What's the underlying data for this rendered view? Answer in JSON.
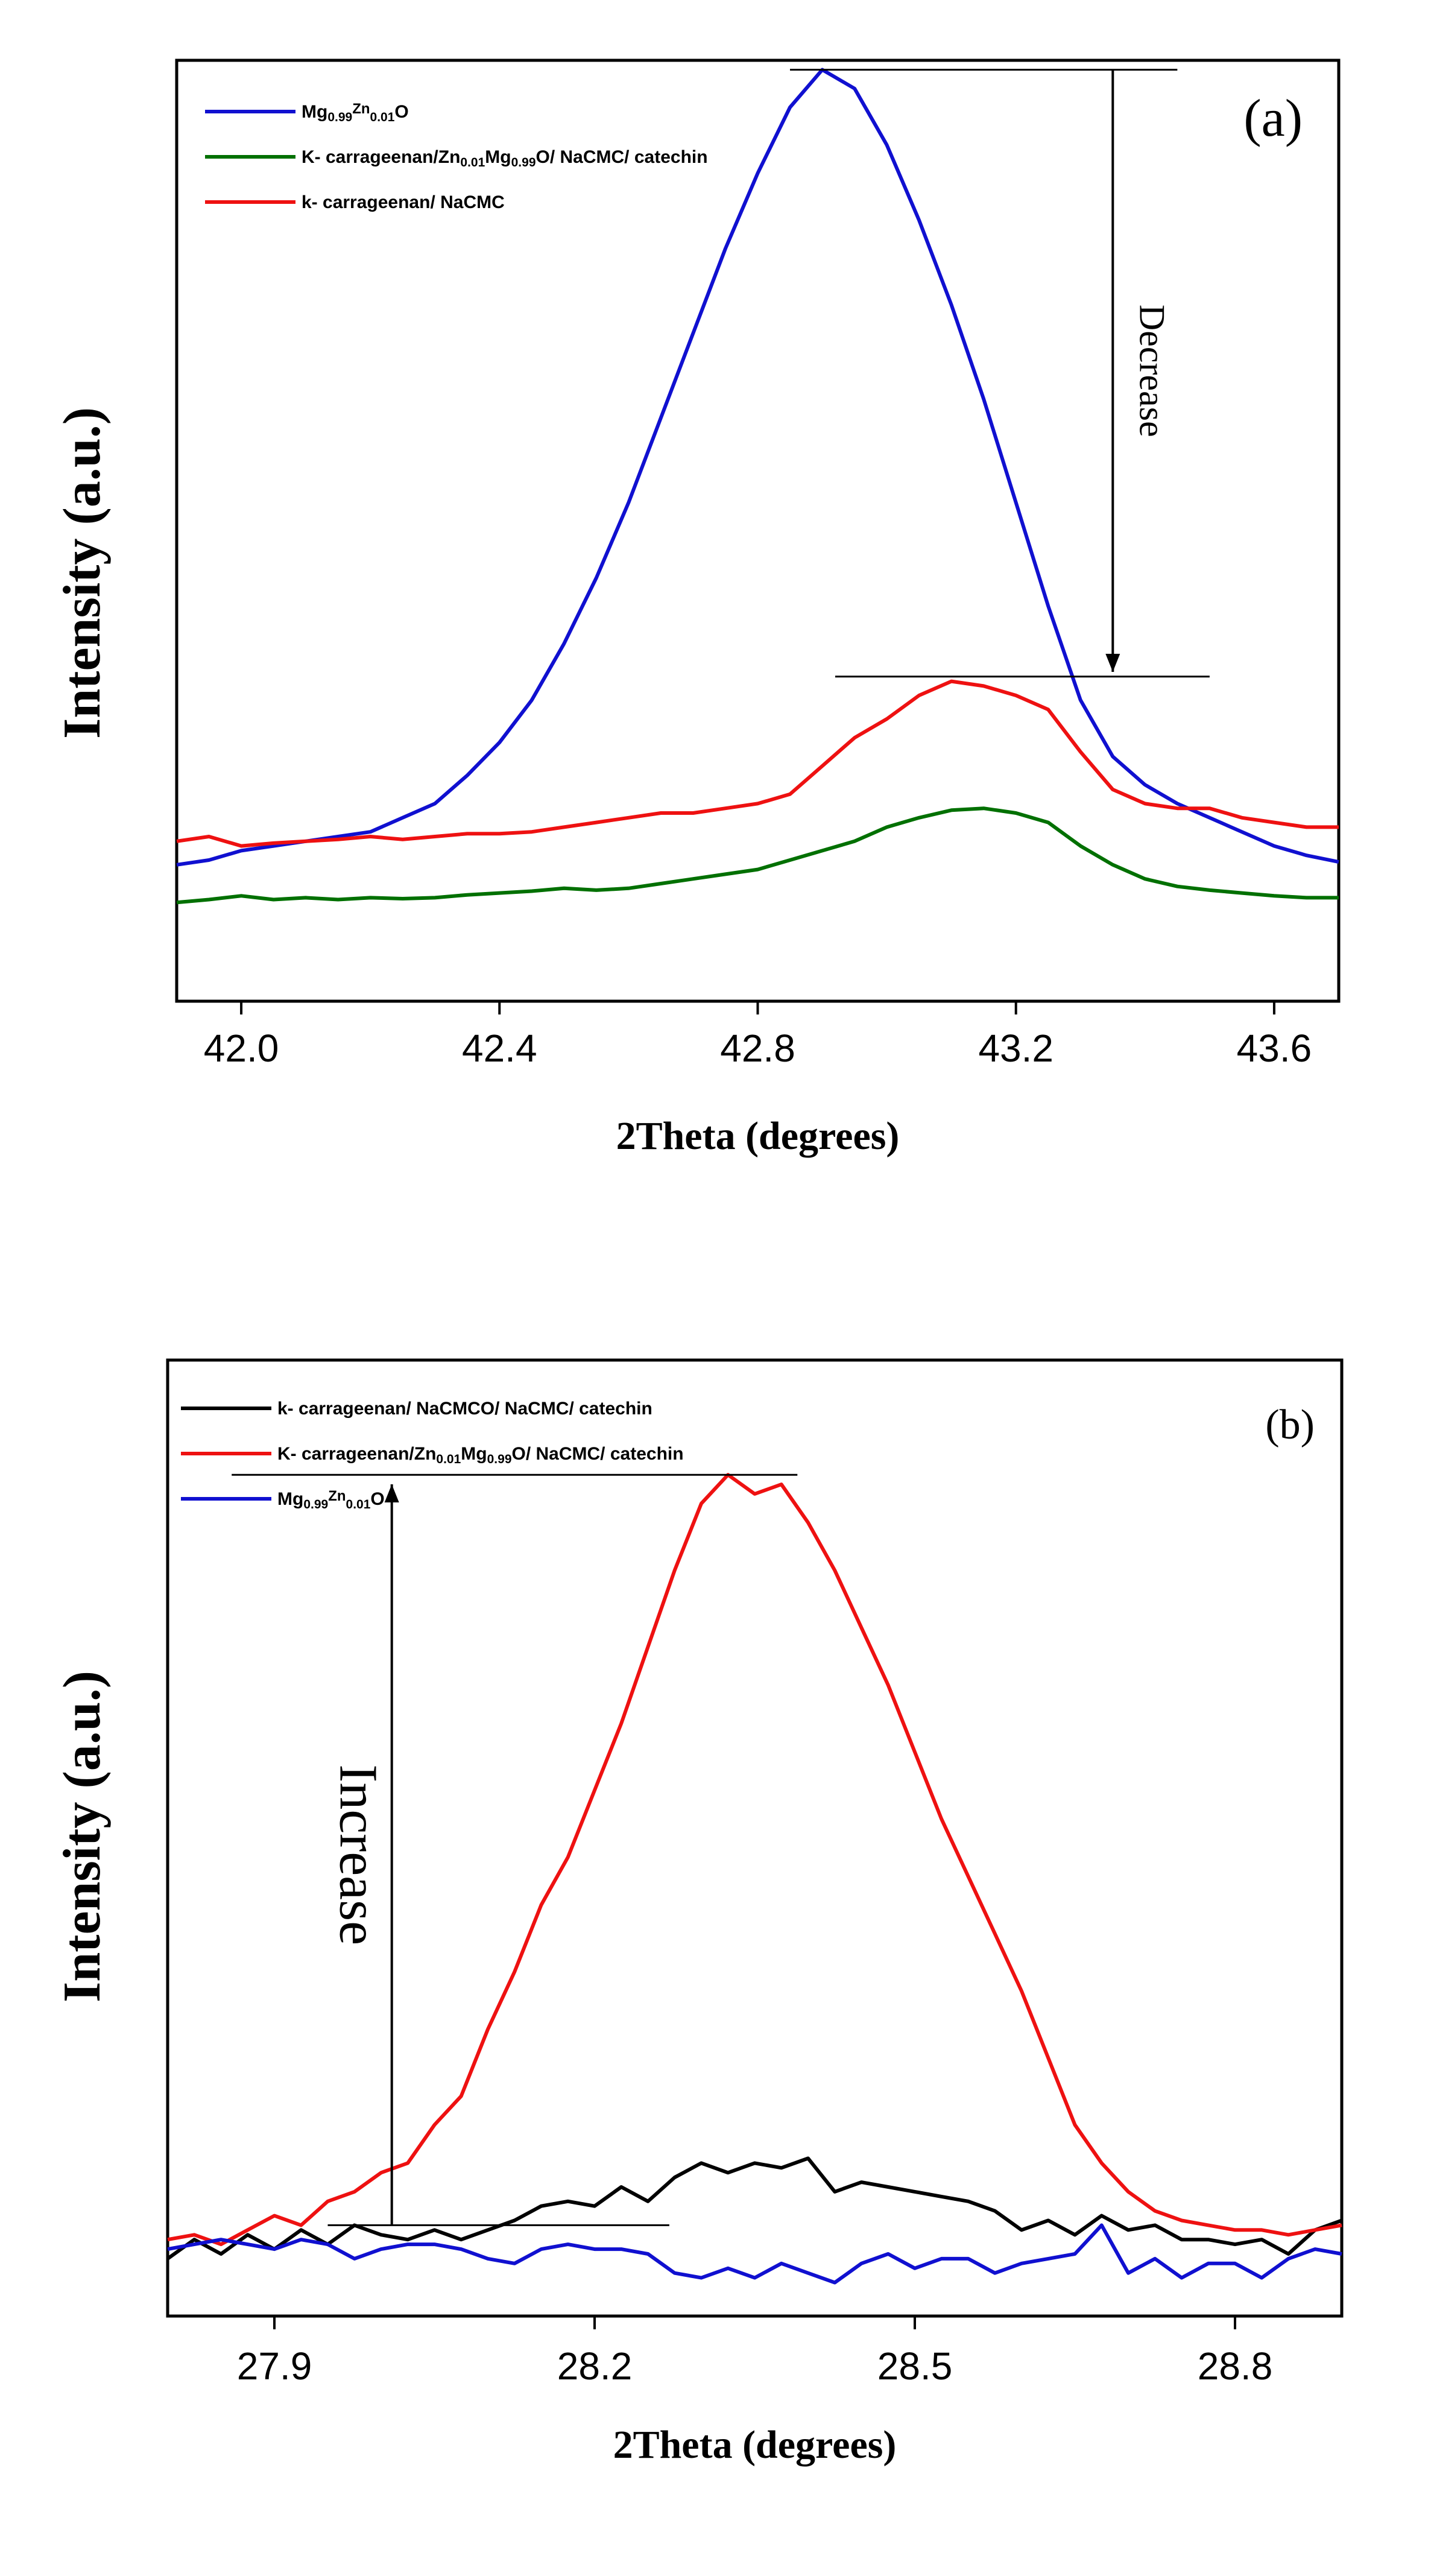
{
  "chart_data": [
    {
      "type": "line",
      "panel_label": "(a)",
      "xlabel": "2Theta (degrees)",
      "ylabel": "Intensity (a.u.)",
      "xlim": [
        41.9,
        43.7
      ],
      "ylim": [
        0,
        100
      ],
      "xticks": [
        42.0,
        42.4,
        42.8,
        43.2,
        43.6
      ],
      "xtick_labels": [
        "42.0",
        "42.4",
        "42.8",
        "43.2",
        "43.6"
      ],
      "legend_position": "top-left",
      "legend": [
        {
          "color": "#1010d0",
          "parts": [
            {
              "t": "Mg",
              "s": "n"
            },
            {
              "t": "0.99",
              "s": "sub"
            },
            {
              "t": "Zn",
              "s": "sup"
            },
            {
              "t": "0.01",
              "s": "sub"
            },
            {
              "t": "O",
              "s": "n"
            }
          ]
        },
        {
          "color": "#007000",
          "parts": [
            {
              "t": "K- carrageenan/Zn",
              "s": "n"
            },
            {
              "t": "0.01",
              "s": "sub"
            },
            {
              "t": "Mg",
              "s": "n"
            },
            {
              "t": "0.99",
              "s": "sub"
            },
            {
              "t": "O/ NaCMC/ catechin",
              "s": "n"
            }
          ]
        },
        {
          "color": "#ee1111",
          "parts": [
            {
              "t": "k- carrageenan/ NaCMC",
              "s": "n"
            }
          ]
        }
      ],
      "annotation": {
        "text": "Decrease",
        "x": 43.35,
        "y_from": 99,
        "y_to": 35,
        "line_top_x": [
          42.85,
          43.45
        ],
        "line_top_y": 99,
        "line_bottom_x": [
          42.92,
          43.5
        ],
        "line_bottom_y": 34.5
      },
      "series": [
        {
          "name": "Mg0.99Zn0.01O",
          "color": "#1010d0",
          "x": [
            41.9,
            41.95,
            42.0,
            42.05,
            42.1,
            42.15,
            42.2,
            42.25,
            42.3,
            42.35,
            42.4,
            42.45,
            42.5,
            42.55,
            42.6,
            42.65,
            42.7,
            42.75,
            42.8,
            42.85,
            42.9,
            42.95,
            43.0,
            43.05,
            43.1,
            43.15,
            43.2,
            43.25,
            43.3,
            43.35,
            43.4,
            43.45,
            43.5,
            43.55,
            43.6,
            43.65,
            43.7
          ],
          "values": [
            14.5,
            15,
            16,
            16.5,
            17,
            17.5,
            18,
            19.5,
            21,
            24,
            27.5,
            32,
            38,
            45,
            53,
            62,
            71,
            80,
            88,
            95,
            99,
            97,
            91,
            83,
            74,
            64,
            53,
            42,
            32,
            26,
            23,
            21,
            19.5,
            18,
            16.5,
            15.5,
            14.8
          ]
        },
        {
          "name": "K- carrageenan/Zn0.01Mg0.99O/ NaCMC/ catechin",
          "color": "#007000",
          "x": [
            41.9,
            41.95,
            42.0,
            42.05,
            42.1,
            42.15,
            42.2,
            42.25,
            42.3,
            42.35,
            42.4,
            42.45,
            42.5,
            42.55,
            42.6,
            42.65,
            42.7,
            42.75,
            42.8,
            42.85,
            42.9,
            42.95,
            43.0,
            43.05,
            43.1,
            43.15,
            43.2,
            43.25,
            43.3,
            43.35,
            43.4,
            43.45,
            43.5,
            43.55,
            43.6,
            43.65,
            43.7
          ],
          "values": [
            10.5,
            10.8,
            11.2,
            10.8,
            11,
            10.8,
            11,
            10.9,
            11,
            11.3,
            11.5,
            11.7,
            12,
            11.8,
            12,
            12.5,
            13,
            13.5,
            14,
            15,
            16,
            17,
            18.5,
            19.5,
            20.3,
            20.5,
            20,
            19,
            16.5,
            14.5,
            13,
            12.2,
            11.8,
            11.5,
            11.2,
            11,
            11
          ]
        },
        {
          "name": "k- carrageenan/ NaCMC",
          "color": "#ee1111",
          "x": [
            41.9,
            41.95,
            42.0,
            42.05,
            42.1,
            42.15,
            42.2,
            42.25,
            42.3,
            42.35,
            42.4,
            42.45,
            42.5,
            42.55,
            42.6,
            42.65,
            42.7,
            42.75,
            42.8,
            42.85,
            42.9,
            42.95,
            43.0,
            43.05,
            43.1,
            43.15,
            43.2,
            43.25,
            43.3,
            43.35,
            43.4,
            43.45,
            43.5,
            43.55,
            43.6,
            43.65,
            43.7
          ],
          "values": [
            17,
            17.5,
            16.5,
            16.8,
            17,
            17.2,
            17.5,
            17.2,
            17.5,
            17.8,
            17.8,
            18,
            18.5,
            19,
            19.5,
            20,
            20,
            20.5,
            21,
            22,
            25,
            28,
            30,
            32.5,
            34,
            33.5,
            32.5,
            31,
            26.5,
            22.5,
            21,
            20.5,
            20.5,
            19.5,
            19,
            18.5,
            18.5
          ]
        }
      ]
    },
    {
      "type": "line",
      "panel_label": "(b)",
      "xlabel": "2Theta (degrees)",
      "ylabel": "Intensity (a.u.)",
      "xlim": [
        27.8,
        28.9
      ],
      "ylim": [
        0,
        100
      ],
      "xticks": [
        27.9,
        28.2,
        28.5,
        28.8
      ],
      "xtick_labels": [
        "27.9",
        "28.2",
        "28.5",
        "28.8"
      ],
      "legend_position": "top-left",
      "legend": [
        {
          "color": "#000000",
          "parts": [
            {
              "t": "k- carrageenan/ NaCMCO/ NaCMC/ catechin",
              "s": "n"
            }
          ]
        },
        {
          "color": "#ee1111",
          "parts": [
            {
              "t": "K- carrageenan/Zn",
              "s": "n"
            },
            {
              "t": "0.01",
              "s": "sub"
            },
            {
              "t": "Mg",
              "s": "n"
            },
            {
              "t": "0.99",
              "s": "sub"
            },
            {
              "t": "O/ NaCMC/ catechin",
              "s": "n"
            }
          ]
        },
        {
          "color": "#1010d0",
          "parts": [
            {
              "t": "Mg",
              "s": "n"
            },
            {
              "t": "0.99",
              "s": "sub"
            },
            {
              "t": "Zn",
              "s": "sup"
            },
            {
              "t": "0.01",
              "s": "sub"
            },
            {
              "t": "O",
              "s": "n"
            }
          ]
        }
      ],
      "annotation": {
        "text": "Increase",
        "x": 28.01,
        "y_from": 9.5,
        "y_to": 87,
        "line_top_x": [
          27.86,
          28.39
        ],
        "line_top_y": 88,
        "line_bottom_x": [
          27.95,
          28.27
        ],
        "line_bottom_y": 9.5
      },
      "series": [
        {
          "name": "k- carrageenan/ NaCMCO/ NaCMC/ catechin",
          "color": "#000000",
          "x": [
            27.8,
            27.825,
            27.85,
            27.875,
            27.9,
            27.925,
            27.95,
            27.975,
            28.0,
            28.025,
            28.05,
            28.075,
            28.1,
            28.125,
            28.15,
            28.175,
            28.2,
            28.225,
            28.25,
            28.275,
            28.3,
            28.325,
            28.35,
            28.375,
            28.4,
            28.425,
            28.45,
            28.475,
            28.5,
            28.525,
            28.55,
            28.575,
            28.6,
            28.625,
            28.65,
            28.675,
            28.7,
            28.725,
            28.75,
            28.775,
            28.8,
            28.825,
            28.85,
            28.875,
            28.9
          ],
          "values": [
            6,
            8,
            6.5,
            8.5,
            7,
            9,
            7.5,
            9.5,
            8.5,
            8,
            9,
            8,
            9,
            10,
            11.5,
            12,
            11.5,
            13.5,
            12,
            14.5,
            16,
            15,
            16,
            15.5,
            16.5,
            13,
            14,
            13.5,
            13,
            12.5,
            12,
            11,
            9,
            10,
            8.5,
            10.5,
            9,
            9.5,
            8,
            8,
            7.5,
            8,
            6.5,
            9,
            10
          ]
        },
        {
          "name": "K- carrageenan/Zn0.01Mg0.99O/ NaCMC/ catechin",
          "color": "#ee1111",
          "x": [
            27.8,
            27.825,
            27.85,
            27.875,
            27.9,
            27.925,
            27.95,
            27.975,
            28.0,
            28.025,
            28.05,
            28.075,
            28.1,
            28.125,
            28.15,
            28.175,
            28.2,
            28.225,
            28.25,
            28.275,
            28.3,
            28.325,
            28.35,
            28.375,
            28.4,
            28.425,
            28.45,
            28.475,
            28.5,
            28.525,
            28.55,
            28.575,
            28.6,
            28.625,
            28.65,
            28.675,
            28.7,
            28.725,
            28.75,
            28.775,
            28.8,
            28.825,
            28.85,
            28.875,
            28.9
          ],
          "values": [
            8,
            8.5,
            7.5,
            9,
            10.5,
            9.5,
            12,
            13,
            15,
            16,
            20,
            23,
            30,
            36,
            43,
            48,
            55,
            62,
            70,
            78,
            85,
            88,
            86,
            87,
            83,
            78,
            72,
            66,
            59,
            52,
            46,
            40,
            34,
            27,
            20,
            16,
            13,
            11,
            10,
            9.5,
            9,
            9,
            8.5,
            9,
            9.5
          ]
        },
        {
          "name": "Mg0.99Zn0.01O",
          "color": "#1010d0",
          "x": [
            27.8,
            27.825,
            27.85,
            27.875,
            27.9,
            27.925,
            27.95,
            27.975,
            28.0,
            28.025,
            28.05,
            28.075,
            28.1,
            28.125,
            28.15,
            28.175,
            28.2,
            28.225,
            28.25,
            28.275,
            28.3,
            28.325,
            28.35,
            28.375,
            28.4,
            28.425,
            28.45,
            28.475,
            28.5,
            28.525,
            28.55,
            28.575,
            28.6,
            28.625,
            28.65,
            28.675,
            28.7,
            28.725,
            28.75,
            28.775,
            28.8,
            28.825,
            28.85,
            28.875,
            28.9
          ],
          "values": [
            7,
            7.5,
            8,
            7.5,
            7,
            8,
            7.5,
            6,
            7,
            7.5,
            7.5,
            7,
            6,
            5.5,
            7,
            7.5,
            7,
            7,
            6.5,
            4.5,
            4,
            5,
            4,
            5.5,
            4.5,
            3.5,
            5.5,
            6.5,
            5,
            6,
            6,
            4.5,
            5.5,
            6,
            6.5,
            9.5,
            4.5,
            6,
            4,
            5.5,
            5.5,
            4,
            6,
            7,
            6.5
          ]
        }
      ]
    }
  ]
}
